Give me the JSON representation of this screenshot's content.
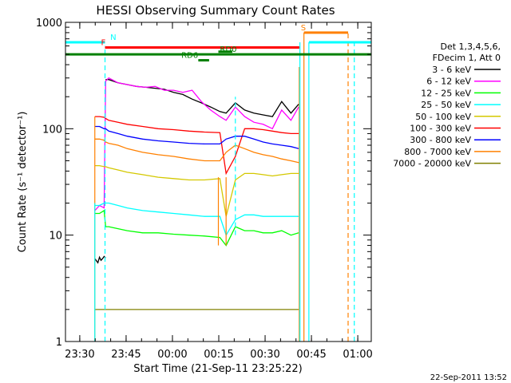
{
  "chart_data": {
    "type": "line",
    "title": "HESSI Observing Summary Count Rates",
    "xlabel": "Start Time (21-Sep-11 23:25:22)",
    "ylabel": "Count Rate (s⁻¹ detector⁻¹)",
    "x_ticks": [
      "23:30",
      "23:45",
      "00:00",
      "00:15",
      "00:30",
      "00:45",
      "01:00"
    ],
    "x_tick_minutes": [
      4.63,
      19.63,
      34.63,
      49.63,
      64.63,
      79.63,
      94.63
    ],
    "xlim_minutes": [
      0,
      99
    ],
    "y_scale": "log",
    "ylim": [
      1,
      1000
    ],
    "y_ticks": [
      1,
      10,
      100,
      1000
    ],
    "y_tick_labels": [
      "1",
      "10",
      "100",
      "1000"
    ],
    "legend": {
      "placement": "right",
      "header": [
        "Det 1,3,4,5,6,",
        "FDecim 1, Att 0"
      ],
      "entries": [
        {
          "label": "3 - 6 keV",
          "color": "#000000"
        },
        {
          "label": "6 - 12 keV",
          "color": "#ff00ff"
        },
        {
          "label": "12 - 25 keV",
          "color": "#00ff00"
        },
        {
          "label": "25 - 50 keV",
          "color": "#00ffff"
        },
        {
          "label": "50 - 100 keV",
          "color": "#d4c800"
        },
        {
          "label": "100 - 300 keV",
          "color": "#ff0000"
        },
        {
          "label": "300 - 800 keV",
          "color": "#0000ff"
        },
        {
          "label": "800 - 7000 keV",
          "color": "#ff8000"
        },
        {
          "label": "7000 - 20000 keV",
          "color": "#808000"
        }
      ]
    },
    "series": [
      {
        "color": "#000000",
        "x": [
          9.5,
          10.5,
          11,
          11.5,
          12,
          12.5,
          13
        ],
        "y": [
          6,
          5.5,
          6.2,
          5.8,
          6,
          6.3,
          6.1
        ]
      },
      {
        "color": "#000000",
        "x": [
          13,
          14,
          17,
          20,
          23,
          26,
          29,
          32,
          35,
          38,
          41,
          44,
          47,
          50,
          52,
          55,
          58,
          61,
          64,
          67,
          70,
          73,
          75.5
        ],
        "y": [
          290,
          290,
          270,
          260,
          250,
          245,
          240,
          235,
          220,
          210,
          190,
          175,
          160,
          145,
          140,
          175,
          150,
          140,
          135,
          130,
          180,
          140,
          170
        ]
      },
      {
        "color": "#ff00ff",
        "x": [
          9.5,
          11,
          12.5,
          13,
          14,
          17,
          20,
          23,
          26,
          29,
          32,
          35,
          38,
          41,
          44,
          47,
          50,
          52,
          55,
          58,
          61,
          64,
          67,
          70,
          73,
          75.5
        ],
        "y": [
          17,
          19,
          18,
          280,
          300,
          270,
          260,
          250,
          245,
          250,
          230,
          230,
          220,
          230,
          180,
          150,
          130,
          120,
          160,
          130,
          115,
          110,
          100,
          150,
          120,
          160
        ]
      },
      {
        "color": "#00ff00",
        "x": [
          9.5,
          11,
          12.5,
          13,
          14,
          17,
          20,
          25,
          30,
          35,
          40,
          45,
          50,
          52,
          55,
          58,
          61,
          64,
          67,
          70,
          73,
          75.5
        ],
        "y": [
          16,
          16,
          17,
          12,
          12,
          11.5,
          11,
          10.5,
          10.5,
          10.2,
          10,
          9.8,
          9.5,
          8,
          12,
          11,
          11,
          10.5,
          10.5,
          11,
          10,
          10.5
        ]
      },
      {
        "color": "#00ffff",
        "x": [
          9.5,
          11,
          12.5,
          13,
          14,
          17,
          20,
          25,
          30,
          35,
          40,
          45,
          50,
          52,
          55,
          58,
          61,
          64,
          67,
          70,
          73,
          75.5
        ],
        "y": [
          19,
          19,
          20,
          20,
          20,
          19,
          18,
          17,
          16.5,
          16,
          15.5,
          15,
          15,
          10,
          14,
          15.5,
          15.5,
          15,
          15,
          15,
          15,
          15
        ]
      },
      {
        "color": "#d4c800",
        "x": [
          9.5,
          11,
          12.5,
          13,
          14,
          17,
          20,
          25,
          30,
          35,
          40,
          45,
          50,
          52,
          55,
          58,
          61,
          64,
          67,
          70,
          73,
          75.5
        ],
        "y": [
          45,
          45,
          44,
          44,
          43,
          41,
          39,
          37,
          35,
          34,
          33,
          33,
          34,
          15,
          33,
          38,
          38,
          37,
          36,
          37,
          38,
          38
        ]
      },
      {
        "color": "#ff0000",
        "x": [
          9.5,
          11,
          12.5,
          13,
          14,
          17,
          20,
          25,
          30,
          35,
          40,
          45,
          50,
          52,
          55,
          58,
          61,
          64,
          67,
          70,
          73,
          75.5
        ],
        "y": [
          130,
          130,
          128,
          125,
          120,
          115,
          110,
          105,
          100,
          98,
          95,
          93,
          92,
          38,
          55,
          100,
          100,
          98,
          95,
          92,
          90,
          90
        ]
      },
      {
        "color": "#0000ff",
        "x": [
          9.5,
          11,
          12.5,
          13,
          14,
          17,
          20,
          25,
          30,
          35,
          40,
          45,
          50,
          52,
          55,
          58,
          61,
          64,
          67,
          70,
          73,
          75.5
        ],
        "y": [
          105,
          105,
          100,
          100,
          95,
          90,
          85,
          80,
          77,
          75,
          73,
          72,
          72,
          80,
          85,
          85,
          80,
          75,
          72,
          70,
          68,
          65
        ]
      },
      {
        "color": "#ff8000",
        "x": [
          9.5,
          11,
          12.5,
          13,
          14,
          17,
          20,
          25,
          30,
          35,
          40,
          45,
          50,
          52,
          55,
          58,
          61,
          64,
          67,
          70,
          73,
          75.5
        ],
        "y": [
          80,
          80,
          78,
          75,
          73,
          70,
          65,
          60,
          57,
          55,
          52,
          50,
          50,
          60,
          70,
          65,
          60,
          57,
          55,
          52,
          50,
          48
        ]
      },
      {
        "color": "#808000",
        "x": [
          9.5,
          22,
          49,
          61,
          62.5,
          71,
          72,
          75.5
        ],
        "y": [
          2,
          2,
          2,
          2,
          2,
          2,
          2,
          2
        ]
      }
    ],
    "vertical_lines": [
      {
        "x": 9.5,
        "y0": 1,
        "y1": 130,
        "color": "#ff8000",
        "dash": false
      },
      {
        "x": 9.5,
        "y0": 1,
        "y1": 20,
        "color": "#00ffff",
        "dash": false
      },
      {
        "x": 12.8,
        "y0": 1,
        "y1": 600,
        "color": "#00ffff",
        "dash": true
      },
      {
        "x": 49.5,
        "y0": 8,
        "y1": 35,
        "color": "#ff8000",
        "dash": false
      },
      {
        "x": 52,
        "y0": 8,
        "y1": 35,
        "color": "#ff8000",
        "dash": false
      },
      {
        "x": 55,
        "y0": 10,
        "y1": 200,
        "color": "#00ffff",
        "dash": true
      },
      {
        "x": 75.7,
        "y0": 1,
        "y1": 380,
        "color": "#ff8000",
        "dash": false
      },
      {
        "x": 75.9,
        "y0": 1,
        "y1": 650,
        "color": "#00ffff",
        "dash": false
      },
      {
        "x": 77.2,
        "y0": 1,
        "y1": 800,
        "color": "#ff8000",
        "dash": false
      },
      {
        "x": 78.8,
        "y0": 1,
        "y1": 650,
        "color": "#00ffff",
        "dash": false
      },
      {
        "x": 91.5,
        "y0": 1,
        "y1": 800,
        "color": "#ff8000",
        "dash": true
      },
      {
        "x": 93.5,
        "y0": 1,
        "y1": 650,
        "color": "#00ffff",
        "dash": true
      }
    ],
    "flag_bars": [
      {
        "label": "N",
        "color": "#00ffff",
        "y": 650,
        "segments": [
          [
            0,
            12.8
          ],
          [
            78.8,
            99
          ]
        ],
        "label_x": 14.5
      },
      {
        "label": "S",
        "color": "#ff8000",
        "y": 800,
        "segments": [
          [
            77.2,
            91.5
          ]
        ],
        "label_x": 76.2
      },
      {
        "label": "F",
        "color": "#ff0000",
        "y": 580,
        "segments": [
          [
            12.8,
            75.7
          ]
        ],
        "label_x": 11.5
      },
      {
        "label": "RD6",
        "color": "#008000",
        "y": 440,
        "segments": [
          [
            43,
            46.5
          ]
        ],
        "label_x": 37.5
      },
      {
        "label": "RD0",
        "color": "#008000",
        "y": 500,
        "segments": [
          [
            0,
            99
          ]
        ],
        "label_x": 50
      },
      {
        "label": "",
        "color": "#008000",
        "y": 530,
        "segments": [
          [
            49.5,
            54
          ]
        ],
        "label_x": 0
      }
    ]
  },
  "timestamp": "22-Sep-2011 13:52"
}
